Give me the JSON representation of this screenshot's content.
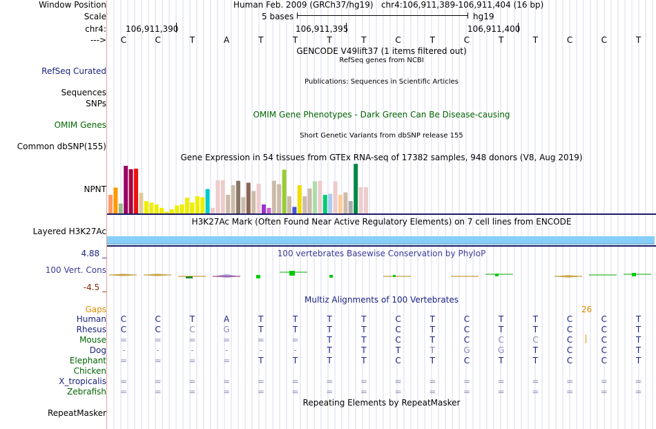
{
  "header": {
    "window_position_label": "Window Position",
    "window_position": "Human Feb. 2009 (GRCh37/hg19)   chr4:106,911,389-106,911,404 (16 bp)",
    "scale_label": "Scale",
    "scale_text": "5 bases",
    "scale_assembly": "hg19",
    "chrom_label": "chr4:",
    "ticks": [
      "106,911,390",
      "106,911,395",
      "106,911,400"
    ],
    "strand_label": "--->",
    "bases": [
      "C",
      "C",
      "T",
      "A",
      "T",
      "T",
      "T",
      "T",
      "C",
      "T",
      "C",
      "T",
      "T",
      "C",
      "C",
      "T"
    ]
  },
  "tracks": {
    "gencode_title": "GENCODE V49lift37 (1 items filtered out)",
    "refseq_subtitle": "RefSeq genes from NCBI",
    "refseq_label": "RefSeq Curated",
    "publications_title": "Publications: Sequences in Scientific Articles",
    "sequences_label": "Sequences",
    "snps_label": "SNPs",
    "omim_title": "OMIM Gene Phenotypes - Dark Green Can Be Disease-causing",
    "omim_label": "OMIM Genes",
    "dbsnp_title": "Short Genetic Variants from dbSNP release 155",
    "dbsnp_label": "Common dbSNP(155)",
    "gtex_title": "Gene Expression in 54 tissues from GTEx RNA-seq of 17382 samples, 948 donors (V8, Aug 2019)",
    "gtex_label": "NPNT",
    "h3k27_title": "H3K27Ac Mark (Often Found Near Active Regulatory Elements) on 7 cell lines from ENCODE",
    "h3k27_label": "Layered H3K27Ac",
    "phylop_title": "100 vertebrates Basewise Conservation by PhyloP",
    "phylop_max": "4.88 _",
    "phylop_label": "100 Vert. Cons",
    "phylop_min": "-4.5 _",
    "multiz_title": "Multiz Alignments of 100 Vertebrates",
    "gaps_label": "Gaps",
    "gap_count": "26",
    "repeat_title": "Repeating Elements by RepeatMasker",
    "repeat_label": "RepeatMasker"
  },
  "colors": {
    "label_blue": "#1a237e",
    "label_green": "#006400",
    "gaps_orange": "#e08c00",
    "h3k27_blue": "#87cefa",
    "dark_navy": "#1a1a66"
  },
  "gtex_bars": [
    {
      "color": "#ff9966",
      "value": 0.4
    },
    {
      "color": "#ff9900",
      "value": 0.55
    },
    {
      "color": "#99bb88",
      "value": 0.22
    },
    {
      "color": "#990066",
      "value": 1.0
    },
    {
      "color": "#aa0044",
      "value": 0.93
    },
    {
      "color": "#ee1111",
      "value": 0.94
    },
    {
      "color": "#ddcc99",
      "value": 0.44
    },
    {
      "color": "#eeee00",
      "value": 0.27
    },
    {
      "color": "#eeee11",
      "value": 0.24
    },
    {
      "color": "#eeee00",
      "value": 0.2
    },
    {
      "color": "#eeee00",
      "value": 0.13
    },
    {
      "color": "#eeee00",
      "value": 0.05
    },
    {
      "color": "#eeee00",
      "value": 0.1
    },
    {
      "color": "#eeee00",
      "value": 0.18
    },
    {
      "color": "#eeee00",
      "value": 0.2
    },
    {
      "color": "#eeee00",
      "value": 0.34
    },
    {
      "color": "#eeee00",
      "value": 0.24
    },
    {
      "color": "#eeee00",
      "value": 0.37
    },
    {
      "color": "#eeee00",
      "value": 0.35
    },
    {
      "color": "#00cccc",
      "value": 0.52
    },
    {
      "color": "#eecccc",
      "value": 0.13
    },
    {
      "color": "#eecccc",
      "value": 0.7
    },
    {
      "color": "#eecccc",
      "value": 0.7
    },
    {
      "color": "#ccbbaa",
      "value": 0.4
    },
    {
      "color": "#ccbbaa",
      "value": 0.6
    },
    {
      "color": "#887766",
      "value": 0.69
    },
    {
      "color": "#ccbbaa",
      "value": 0.35
    },
    {
      "color": "#886655",
      "value": 0.65
    },
    {
      "color": "#ccbbaa",
      "value": 0.48
    },
    {
      "color": "#eecccc",
      "value": 0.63
    },
    {
      "color": "#9933cc",
      "value": 0.2
    },
    {
      "color": "#cc66cc",
      "value": 0.13
    },
    {
      "color": "#ccbbaa",
      "value": 0.69
    },
    {
      "color": "#ccbbaa",
      "value": 0.62
    },
    {
      "color": "#99cc33",
      "value": 0.92
    },
    {
      "color": "#ccbbaa",
      "value": 0.37
    },
    {
      "color": "#4455dd",
      "value": 0.15
    },
    {
      "color": "#eedd00",
      "value": 0.6
    },
    {
      "color": "#ccbbaa",
      "value": 0.37
    },
    {
      "color": "#ccbbaa",
      "value": 0.53
    },
    {
      "color": "#aaddaa",
      "value": 0.68
    },
    {
      "color": "#eecccc",
      "value": 0.69
    },
    {
      "color": "#00cc77",
      "value": 0.4
    },
    {
      "color": "#aaccee",
      "value": 0.42
    },
    {
      "color": "#eecccc",
      "value": 0.68
    },
    {
      "color": "#ffcc99",
      "value": 0.4
    },
    {
      "color": "#ccbbaa",
      "value": 0.45
    },
    {
      "color": "#aaaaaa",
      "value": 0.27
    },
    {
      "color": "#008844",
      "value": 1.04
    },
    {
      "color": "#eecccc",
      "value": 0.56
    },
    {
      "color": "#eecccc",
      "value": 0.56
    }
  ],
  "multiz": {
    "species": [
      {
        "name": "Human",
        "color": "#1a237e",
        "bases": [
          "C",
          "C",
          "T",
          "A",
          "T",
          "T",
          "T",
          "T",
          "C",
          "T",
          "C",
          "T",
          "T",
          "C",
          "C",
          "T"
        ]
      },
      {
        "name": "Rhesus",
        "color": "#1a237e",
        "bases": [
          "C",
          "C",
          "C",
          "G",
          "T",
          "T",
          "T",
          "T",
          "C",
          "T",
          "C",
          "T",
          "T",
          "C",
          "C",
          "T"
        ]
      },
      {
        "name": "Mouse",
        "color": "#006400",
        "bases": [
          "=",
          "=",
          "=",
          "=",
          "=",
          "=",
          "T",
          "T",
          "C",
          "T",
          "C",
          "C",
          "C",
          "C",
          "C",
          "T"
        ]
      },
      {
        "name": "Dog",
        "color": "#1a237e",
        "bases": [
          "-",
          "-",
          "-",
          "-",
          "-",
          "-",
          "T",
          "T",
          "T",
          "T",
          "G",
          "G",
          "T",
          "C",
          "C",
          "T"
        ]
      },
      {
        "name": "Elephant",
        "color": "#006400",
        "bases": [
          "=",
          "=",
          "=",
          "=",
          "T",
          "T",
          "T",
          "T",
          "C",
          "T",
          "C",
          "T",
          "T",
          "C",
          "C",
          "T"
        ]
      },
      {
        "name": "Chicken",
        "color": "#006400",
        "bases": [
          "",
          "",
          "",
          "",
          "",
          "",
          "",
          "",
          "",
          "",
          "",
          "",
          "",
          "",
          "",
          ""
        ]
      },
      {
        "name": "X_tropicalis",
        "color": "#1a237e",
        "bases": [
          "=",
          "=",
          "=",
          "=",
          "=",
          "=",
          "=",
          "=",
          "=",
          "=",
          "=",
          "=",
          "=",
          "=",
          "=",
          "="
        ]
      },
      {
        "name": "Zebrafish",
        "color": "#006400",
        "bases": [
          "=",
          "=",
          "=",
          "=",
          "=",
          "=",
          "=",
          "=",
          "=",
          "=",
          "=",
          "=",
          "=",
          "=",
          "=",
          "="
        ]
      }
    ],
    "mismatch": [
      [],
      [
        2,
        3
      ],
      [
        0,
        1,
        2,
        3,
        4,
        5,
        11,
        12
      ],
      [
        0,
        1,
        2,
        3,
        4,
        5,
        9,
        10,
        11
      ],
      [
        0,
        1,
        2,
        3
      ],
      [],
      [
        0,
        1,
        2,
        3,
        4,
        5,
        6,
        7,
        8,
        9,
        10,
        11,
        12,
        13,
        14,
        15
      ],
      [
        0,
        1,
        2,
        3,
        4,
        5,
        6,
        7,
        8,
        9,
        10,
        11,
        12,
        13,
        14,
        15
      ]
    ]
  }
}
